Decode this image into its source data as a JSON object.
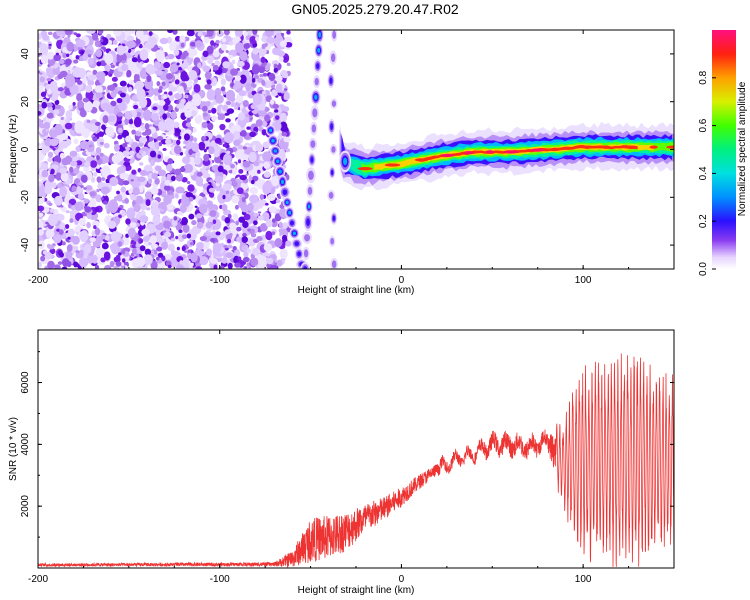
{
  "title": "GN05.2025.279.20.47.R02",
  "chart_data": [
    {
      "type": "heatmap",
      "xlabel": "Height of straight line (km)",
      "ylabel": "Frequency (Hz)",
      "xlim": [
        -200,
        150
      ],
      "ylim": [
        -50,
        50
      ],
      "xticks": [
        -200,
        -100,
        0,
        100
      ],
      "xtick_labels": [
        "-200",
        "-100",
        "0",
        "100"
      ],
      "yticks": [
        -40,
        -20,
        0,
        20,
        40
      ],
      "ytick_labels": [
        "-40",
        "-20",
        "0",
        "20",
        "40"
      ],
      "colorbar": {
        "label": "Normalized spectral amplitude",
        "range": [
          0,
          1
        ],
        "ticks": [
          0.0,
          0.2,
          0.4,
          0.6,
          0.8
        ],
        "tick_labels": [
          "0.0",
          "0.2",
          "0.4",
          "0.6",
          "0.8"
        ]
      },
      "features": {
        "noise_region_x": [
          -200,
          -70
        ],
        "descending_track_x": [
          -72,
          -55
        ],
        "descending_track_freq": [
          8,
          -48
        ],
        "ascending_track_x": [
          -53,
          -45
        ],
        "ascending_track_freq": [
          -50,
          48
        ],
        "vertical_track_x": -38,
        "carrier_points": [
          [
            -32,
            -5
          ],
          [
            -20,
            -8
          ],
          [
            0,
            -6
          ],
          [
            20,
            -3
          ],
          [
            40,
            -1
          ],
          [
            60,
            -1
          ],
          [
            80,
            0
          ],
          [
            100,
            1
          ],
          [
            120,
            1
          ],
          [
            150,
            1
          ]
        ]
      }
    },
    {
      "type": "line",
      "xlabel": "Height of straight line (km)",
      "ylabel": "SNR (10 * v/v)",
      "xlim": [
        -200,
        150
      ],
      "ylim": [
        0,
        7700
      ],
      "xticks": [
        -200,
        -100,
        0,
        100
      ],
      "xtick_labels": [
        "-200",
        "-100",
        "0",
        "100"
      ],
      "yticks": [
        2000,
        4000,
        6000
      ],
      "ytick_labels": [
        "2000",
        "4000",
        "6000"
      ],
      "color": "#ee3333",
      "envelope": {
        "x": [
          -200,
          -70,
          -60,
          -50,
          -40,
          -30,
          -20,
          -10,
          0,
          10,
          20,
          30,
          40,
          50,
          60,
          70,
          80,
          90,
          95,
          100,
          110,
          120,
          130,
          140,
          150
        ],
        "mean": [
          100,
          120,
          300,
          900,
          1000,
          1200,
          1600,
          1900,
          2300,
          2800,
          3200,
          3500,
          3700,
          4000,
          4000,
          3900,
          4100,
          3300,
          3500,
          3500,
          3500,
          3500,
          3400,
          3400,
          3400
        ],
        "amplitude": [
          60,
          80,
          350,
          900,
          900,
          800,
          600,
          500,
          400,
          300,
          250,
          250,
          250,
          350,
          400,
          400,
          300,
          1500,
          2800,
          3000,
          3200,
          3600,
          3400,
          3000,
          3000
        ]
      }
    }
  ]
}
